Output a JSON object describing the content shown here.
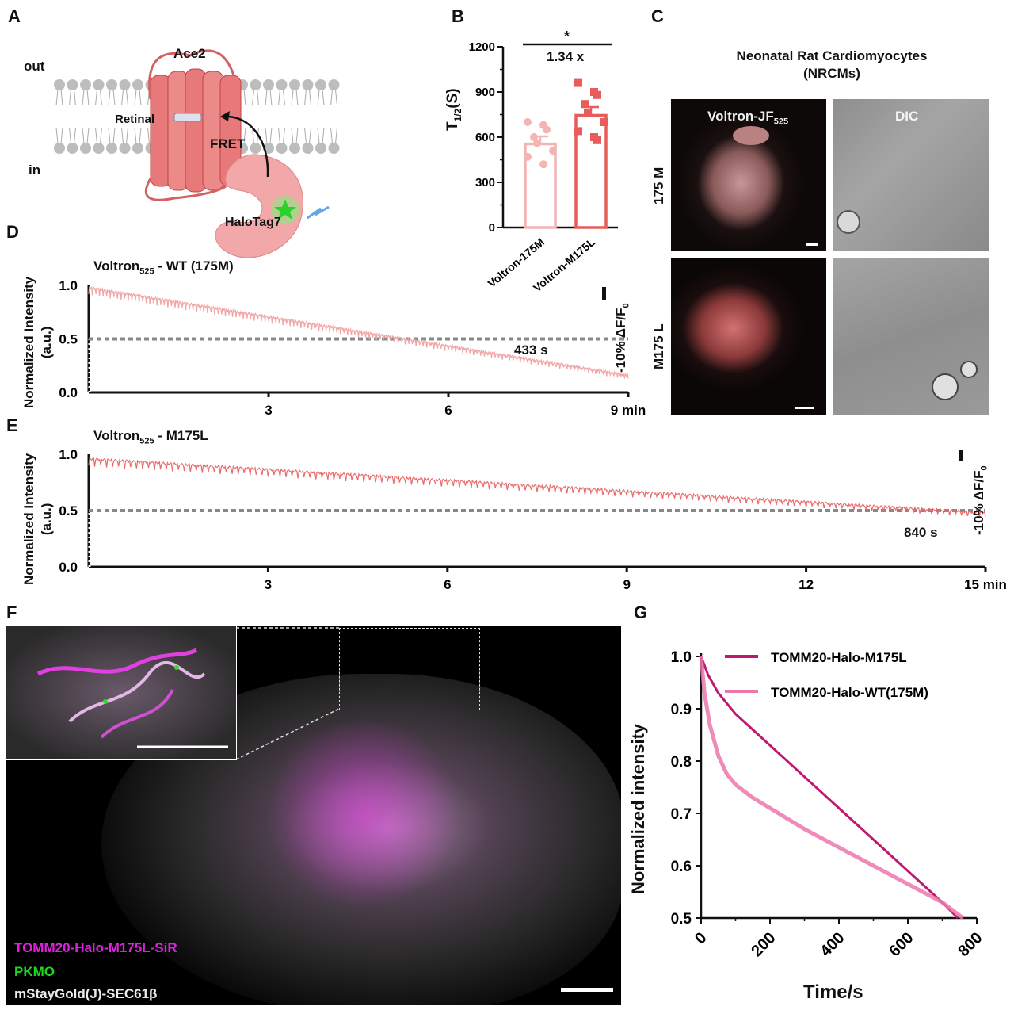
{
  "panels": {
    "a": "A",
    "b": "B",
    "c": "C",
    "d": "D",
    "e": "E",
    "f": "F",
    "g": "G"
  },
  "panel_a": {
    "out": "out",
    "in": "in",
    "ace2": "Ace2",
    "retinal": "Retinal",
    "fret": "FRET",
    "halotag": "HaloTag7",
    "colors": {
      "protein": "#e8797a",
      "halo": "#f2a8a8",
      "membrane": "#bdbdbd",
      "dye": "#3fd43f"
    }
  },
  "panel_b": {
    "ylabel_main": "T",
    "ylabel_sub": "1/2",
    "ylabel_tail": "(S)",
    "sig": "*",
    "fold": "1.34 x"
  },
  "panel_c": {
    "title_line1": "Neonatal Rat Cardiomyocytes",
    "title_line2": "(NRCMs)",
    "row1": "175 M",
    "row2": "M175 L",
    "col1_main": "Voltron-JF",
    "col1_sub": "525",
    "col2": "DIC"
  },
  "panel_d": {
    "title_main": "Voltron",
    "title_sub": "525",
    "title_tail": " - WT (175M)",
    "ylabel1": "Normalized Intensity",
    "ylabel2": "(a.u.)",
    "scale_main": "-10% ΔF/F",
    "scale_sub": "0",
    "annot": "433 s"
  },
  "panel_e": {
    "title_main": "Voltron",
    "title_sub": "525",
    "title_tail": " - M175L",
    "ylabel1": "Normalized Intensity",
    "ylabel2": "(a.u.)",
    "scale_main": "-10% ΔF/F",
    "scale_sub": "0",
    "annot": "840 s"
  },
  "panel_f": {
    "legend1": "TOMM20-Halo-M175L-SiR",
    "legend2": "PKMO",
    "legend3": "mStayGold(J)-SEC61β",
    "colors": {
      "magenta": "#e020e0",
      "green": "#1fd61f",
      "white": "#e8e8e8"
    }
  },
  "panel_g": {
    "xlabel": "Time/s",
    "ylabel": "Normalized intensity"
  },
  "chart_data": [
    {
      "panel": "B",
      "type": "bar",
      "categories": [
        "Voltron-175M",
        "Voltron-M175L"
      ],
      "values": [
        555,
        745
      ],
      "sem": [
        50,
        55
      ],
      "points": [
        [
          700,
          680,
          650,
          600,
          560,
          510,
          470,
          420
        ],
        [
          960,
          900,
          880,
          820,
          760,
          700,
          640,
          600,
          580
        ]
      ],
      "colors": [
        "#f4b4b4",
        "#e85c5c"
      ],
      "ylim": [
        0,
        1200
      ],
      "yticks": [
        0,
        300,
        600,
        900,
        1200
      ],
      "ylabel": "T1/2(S)"
    },
    {
      "panel": "D",
      "type": "line",
      "x_range": [
        0,
        9
      ],
      "xticks": [
        3,
        6,
        9
      ],
      "xtick_labels": [
        "3",
        "6",
        "9 min"
      ],
      "ylim": [
        0,
        1
      ],
      "yticks": [
        0,
        0.5,
        1
      ],
      "ytick_labels": [
        "0.0",
        "0.5",
        "1.0"
      ],
      "series": [
        {
          "color": "#f1a5a5",
          "start": 0.98,
          "end": 0.16,
          "spike_period_min": 0.05
        }
      ],
      "threshold": 0.5,
      "threshold_time_s": 433
    },
    {
      "panel": "E",
      "type": "line",
      "x_range": [
        0,
        15
      ],
      "xticks": [
        3,
        6,
        9,
        12,
        15
      ],
      "xtick_labels": [
        "3",
        "6",
        "9",
        "12",
        "15 min"
      ],
      "ylim": [
        0,
        1
      ],
      "yticks": [
        0,
        0.5,
        1
      ],
      "ytick_labels": [
        "0.0",
        "0.5",
        "1.0"
      ],
      "series": [
        {
          "color": "#ea6b6b",
          "start": 0.96,
          "end": 0.48,
          "spike_period_min": 0.08
        }
      ],
      "threshold": 0.5,
      "threshold_time_s": 840
    },
    {
      "panel": "G",
      "type": "line",
      "x_range": [
        0,
        800
      ],
      "xticks": [
        0,
        200,
        400,
        600,
        800
      ],
      "ylim": [
        0.5,
        1.0
      ],
      "yticks": [
        0.5,
        0.6,
        0.7,
        0.8,
        0.9,
        1.0
      ],
      "series": [
        {
          "name": "TOMM20-Halo-M175L",
          "color": "#c0186e",
          "x": [
            0,
            20,
            50,
            100,
            150,
            200,
            300,
            400,
            500,
            600,
            700,
            745
          ],
          "y": [
            1.0,
            0.965,
            0.93,
            0.89,
            0.86,
            0.83,
            0.77,
            0.71,
            0.65,
            0.59,
            0.53,
            0.5
          ]
        },
        {
          "name": "TOMM20-Halo-WT(175M)",
          "color": "#ec77ad",
          "x": [
            0,
            10,
            25,
            50,
            75,
            100,
            150,
            200,
            300,
            400,
            500,
            600,
            700,
            760
          ],
          "y": [
            1.0,
            0.93,
            0.87,
            0.81,
            0.775,
            0.755,
            0.73,
            0.71,
            0.67,
            0.635,
            0.6,
            0.565,
            0.53,
            0.5
          ]
        }
      ],
      "legend": "top-right"
    }
  ]
}
